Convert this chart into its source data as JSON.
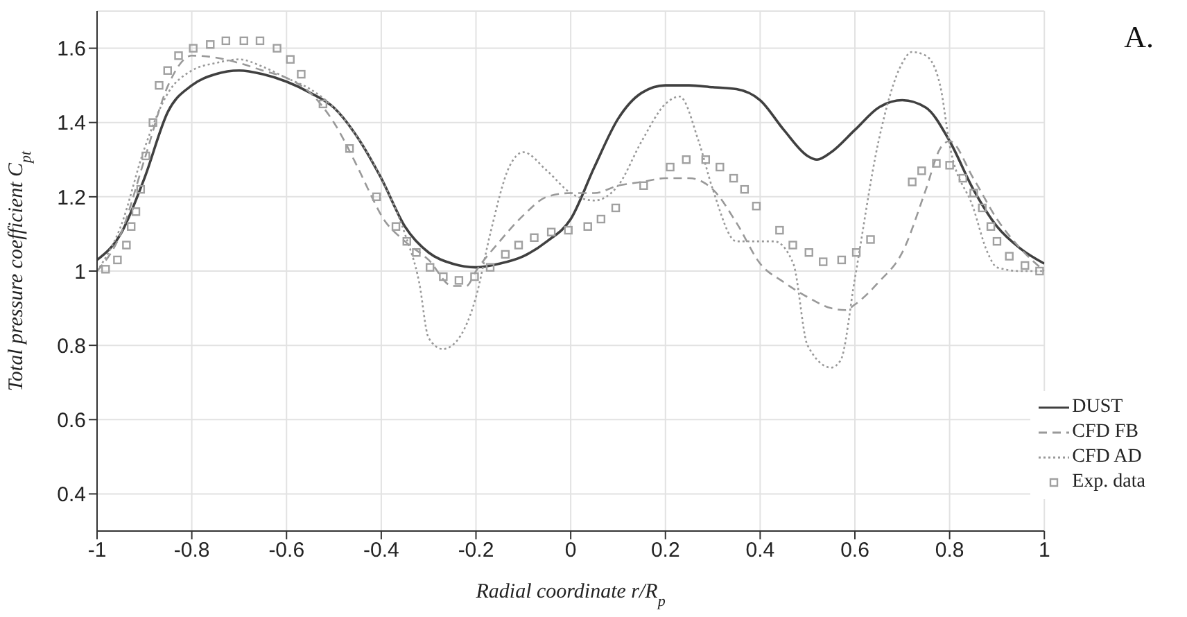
{
  "chart_data": {
    "type": "line",
    "xlabel": "Radial coordinate r/R$_{p}$",
    "ylabel": "Total pressure coefficient C$_{pt}$",
    "annotations": [
      "A."
    ],
    "xlim": [
      -1,
      1
    ],
    "xticks": [
      -1,
      -0.8,
      -0.6,
      -0.4,
      -0.2,
      0,
      0.2,
      0.4,
      0.6,
      0.8,
      1
    ],
    "ylim": [
      0.3,
      1.7
    ],
    "yticks": [
      0.4,
      0.6,
      0.8,
      1,
      1.2,
      1.4,
      1.6
    ],
    "grid": true,
    "legend": "bottom right",
    "series": [
      {
        "name": "DUST",
        "color": "#404040",
        "line_style": "solid",
        "x": [
          -1,
          -0.95,
          -0.9,
          -0.85,
          -0.8,
          -0.75,
          -0.7,
          -0.65,
          -0.6,
          -0.55,
          -0.5,
          -0.45,
          -0.4,
          -0.35,
          -0.3,
          -0.25,
          -0.2,
          -0.15,
          -0.1,
          -0.05,
          0,
          0.05,
          0.1,
          0.15,
          0.2,
          0.25,
          0.3,
          0.35,
          0.4,
          0.45,
          0.5,
          0.52,
          0.55,
          0.6,
          0.65,
          0.7,
          0.75,
          0.8,
          0.85,
          0.9,
          0.95,
          1
        ],
        "values": [
          1.03,
          1.1,
          1.25,
          1.43,
          1.5,
          1.53,
          1.54,
          1.53,
          1.51,
          1.48,
          1.44,
          1.36,
          1.25,
          1.12,
          1.05,
          1.02,
          1.01,
          1.02,
          1.04,
          1.08,
          1.14,
          1.28,
          1.41,
          1.48,
          1.5,
          1.5,
          1.495,
          1.49,
          1.46,
          1.38,
          1.31,
          1.3,
          1.32,
          1.38,
          1.44,
          1.46,
          1.44,
          1.35,
          1.22,
          1.12,
          1.06,
          1.02
        ]
      },
      {
        "name": "CFD FB",
        "color": "#999999",
        "line_style": "dashed",
        "x": [
          -1,
          -0.95,
          -0.9,
          -0.85,
          -0.8,
          -0.75,
          -0.7,
          -0.65,
          -0.6,
          -0.55,
          -0.5,
          -0.45,
          -0.42,
          -0.4,
          -0.35,
          -0.3,
          -0.25,
          -0.22,
          -0.2,
          -0.15,
          -0.1,
          -0.05,
          0,
          0.05,
          0.1,
          0.15,
          0.2,
          0.25,
          0.3,
          0.35,
          0.4,
          0.45,
          0.5,
          0.55,
          0.58,
          0.6,
          0.65,
          0.7,
          0.75,
          0.78,
          0.8,
          0.85,
          0.9,
          0.95,
          1
        ],
        "values": [
          1.0,
          1.1,
          1.3,
          1.5,
          1.58,
          1.575,
          1.56,
          1.54,
          1.52,
          1.48,
          1.4,
          1.28,
          1.2,
          1.15,
          1.08,
          1.03,
          0.96,
          0.96,
          1.0,
          1.08,
          1.15,
          1.2,
          1.21,
          1.21,
          1.23,
          1.24,
          1.25,
          1.25,
          1.22,
          1.13,
          1.02,
          0.97,
          0.93,
          0.9,
          0.895,
          0.91,
          0.97,
          1.05,
          1.22,
          1.33,
          1.35,
          1.25,
          1.14,
          1.06,
          1.0
        ]
      },
      {
        "name": "CFD AD",
        "color": "#999999",
        "line_style": "dotted",
        "x": [
          -1,
          -0.95,
          -0.9,
          -0.85,
          -0.8,
          -0.75,
          -0.7,
          -0.65,
          -0.6,
          -0.55,
          -0.5,
          -0.45,
          -0.4,
          -0.35,
          -0.32,
          -0.3,
          -0.27,
          -0.25,
          -0.2,
          -0.17,
          -0.13,
          -0.1,
          -0.05,
          0,
          0.05,
          0.1,
          0.15,
          0.2,
          0.23,
          0.27,
          0.3,
          0.35,
          0.4,
          0.43,
          0.47,
          0.5,
          0.55,
          0.57,
          0.6,
          0.65,
          0.7,
          0.72,
          0.75,
          0.78,
          0.8,
          0.85,
          0.88,
          0.9,
          0.95,
          1
        ],
        "values": [
          1.0,
          1.12,
          1.33,
          1.48,
          1.54,
          1.56,
          1.57,
          1.55,
          1.52,
          1.49,
          1.44,
          1.36,
          1.25,
          1.1,
          0.97,
          0.82,
          0.79,
          0.8,
          0.93,
          1.1,
          1.28,
          1.32,
          1.27,
          1.21,
          1.19,
          1.23,
          1.35,
          1.45,
          1.47,
          1.35,
          1.22,
          1.08,
          1.08,
          1.08,
          1.02,
          0.8,
          0.74,
          0.76,
          0.98,
          1.35,
          1.56,
          1.59,
          1.58,
          1.5,
          1.34,
          1.17,
          1.05,
          1.01,
          1.0,
          1.0
        ]
      },
      {
        "name": "Exp. data",
        "type": "scatter",
        "color": "#a0a0a0",
        "marker": "square",
        "x": [
          -0.982,
          -0.957,
          -0.938,
          -0.928,
          -0.918,
          -0.908,
          -0.897,
          -0.882,
          -0.869,
          -0.851,
          -0.828,
          -0.797,
          -0.761,
          -0.728,
          -0.69,
          -0.656,
          -0.62,
          -0.592,
          -0.569,
          -0.523,
          -0.467,
          -0.41,
          -0.369,
          -0.346,
          -0.326,
          -0.297,
          -0.269,
          -0.236,
          -0.203,
          -0.17,
          -0.138,
          -0.11,
          -0.077,
          -0.041,
          -0.005,
          0.036,
          0.064,
          0.095,
          0.154,
          0.21,
          0.244,
          0.285,
          0.315,
          0.344,
          0.367,
          0.392,
          0.441,
          0.469,
          0.503,
          0.533,
          0.572,
          0.603,
          0.633,
          0.721,
          0.741,
          0.772,
          0.8,
          0.828,
          0.851,
          0.869,
          0.887,
          0.9,
          0.926,
          0.959,
          0.99
        ],
        "values": [
          1.005,
          1.03,
          1.07,
          1.12,
          1.16,
          1.22,
          1.31,
          1.4,
          1.5,
          1.54,
          1.58,
          1.6,
          1.61,
          1.62,
          1.62,
          1.62,
          1.6,
          1.57,
          1.53,
          1.45,
          1.33,
          1.2,
          1.12,
          1.08,
          1.05,
          1.01,
          0.985,
          0.975,
          0.985,
          1.01,
          1.045,
          1.07,
          1.09,
          1.105,
          1.11,
          1.12,
          1.14,
          1.17,
          1.23,
          1.28,
          1.3,
          1.3,
          1.28,
          1.25,
          1.22,
          1.175,
          1.11,
          1.07,
          1.05,
          1.025,
          1.03,
          1.05,
          1.085,
          1.24,
          1.27,
          1.29,
          1.285,
          1.25,
          1.21,
          1.17,
          1.12,
          1.08,
          1.04,
          1.015,
          1.0
        ]
      }
    ]
  }
}
